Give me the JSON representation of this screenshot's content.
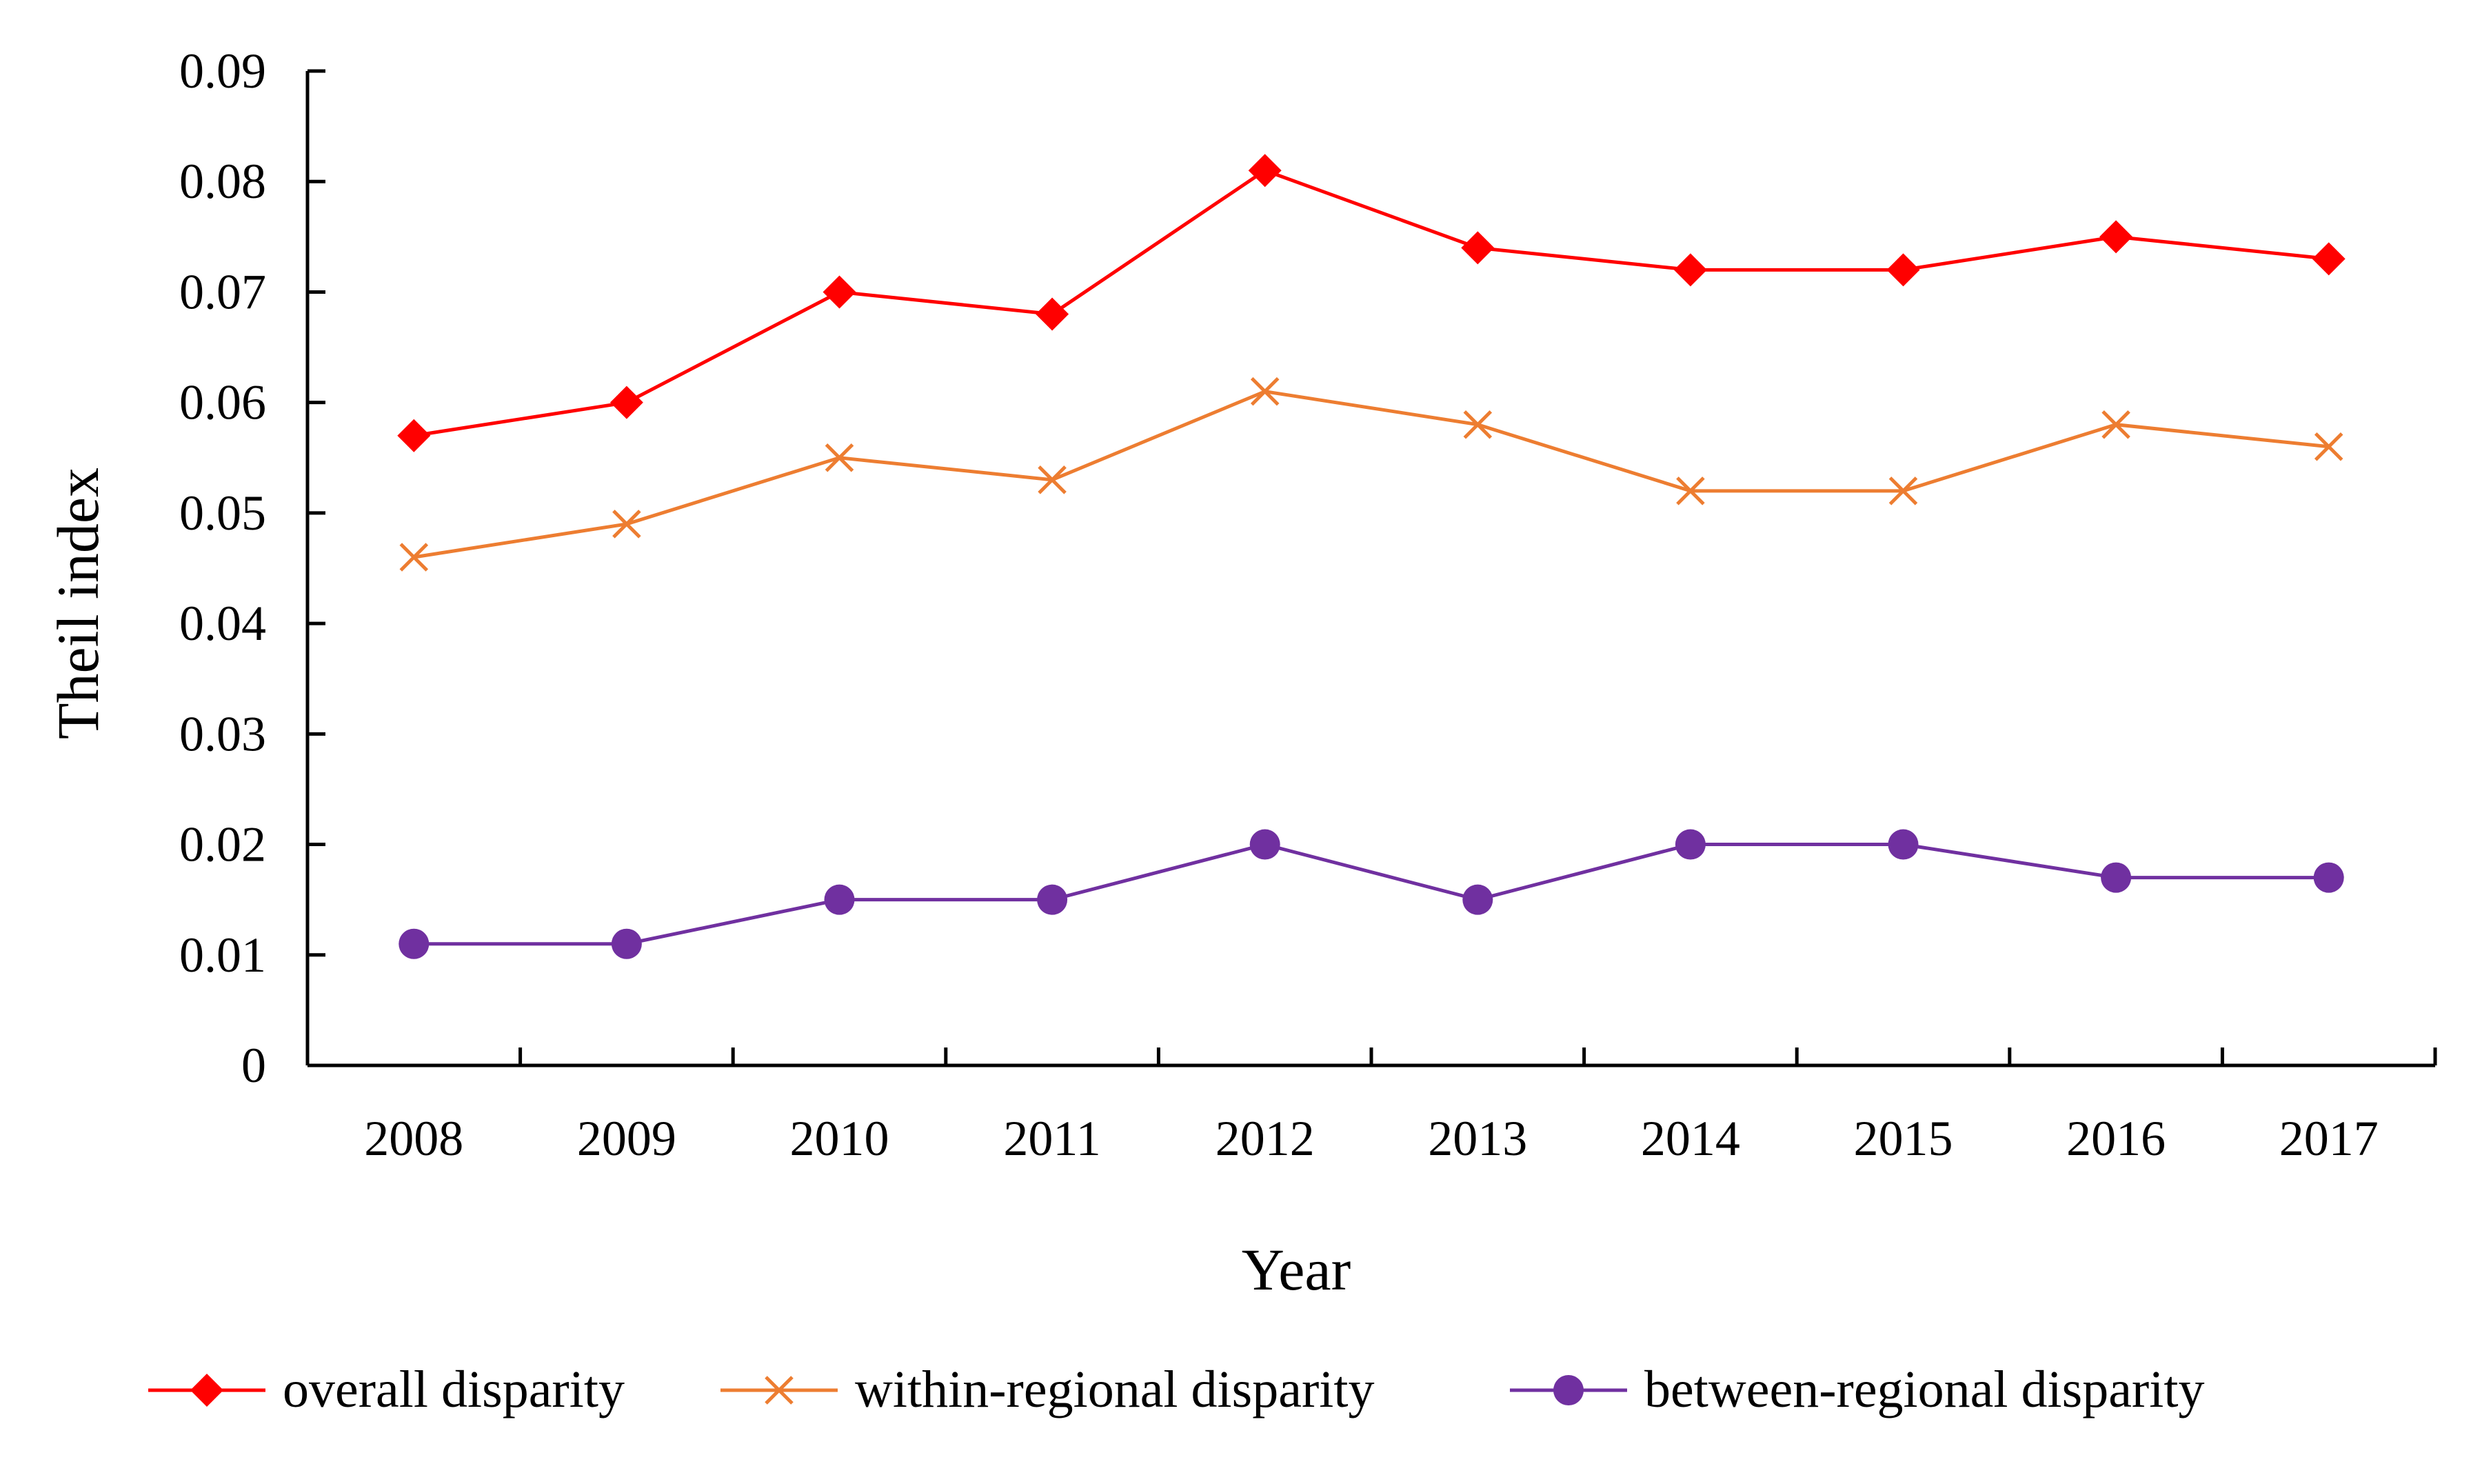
{
  "chart_data": {
    "type": "line",
    "title": "",
    "xlabel": "Year",
    "ylabel": "Theil index",
    "categories": [
      "2008",
      "2009",
      "2010",
      "2011",
      "2012",
      "2013",
      "2014",
      "2015",
      "2016",
      "2017"
    ],
    "ylim": [
      0,
      0.09
    ],
    "yticks": [
      "0",
      "0.01",
      "0.02",
      "0.03",
      "0.04",
      "0.05",
      "0.06",
      "0.07",
      "0.08",
      "0.09"
    ],
    "grid": false,
    "legend_position": "bottom",
    "series": [
      {
        "name": "overall disparity",
        "marker": "diamond",
        "color": "#ff0000",
        "values": [
          0.057,
          0.06,
          0.07,
          0.068,
          0.081,
          0.074,
          0.072,
          0.072,
          0.075,
          0.073
        ]
      },
      {
        "name": "within-regional disparity",
        "marker": "x",
        "color": "#ed7d31",
        "values": [
          0.046,
          0.049,
          0.055,
          0.053,
          0.061,
          0.058,
          0.052,
          0.052,
          0.058,
          0.056
        ]
      },
      {
        "name": "between-regional  disparity",
        "marker": "circle",
        "color": "#7030a0",
        "values": [
          0.011,
          0.011,
          0.015,
          0.015,
          0.02,
          0.015,
          0.02,
          0.02,
          0.017,
          0.017
        ]
      }
    ]
  }
}
